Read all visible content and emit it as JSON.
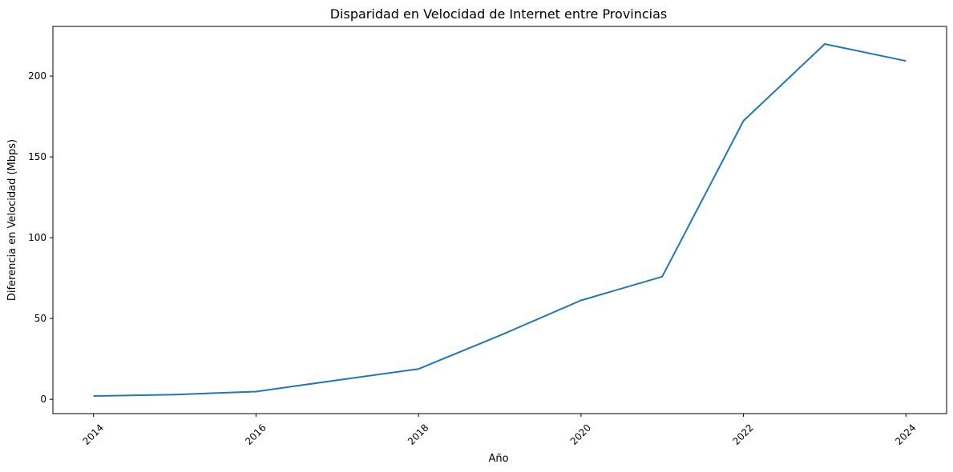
{
  "chart_data": {
    "type": "line",
    "title": "Disparidad en Velocidad de Internet entre Provincias",
    "xlabel": "Año",
    "ylabel": "Diferencia en Velocidad (Mbps)",
    "x": [
      2014,
      2015,
      2016,
      2017,
      2018,
      2019,
      2020,
      2021,
      2022,
      2023,
      2024
    ],
    "series": [
      {
        "values": [
          2.1,
          3.0,
          4.8,
          11.9,
          18.8,
          39.5,
          61.2,
          75.9,
          172.3,
          219.8,
          209.3
        ]
      }
    ],
    "xticks": [
      "2014",
      "2016",
      "2018",
      "2020",
      "2022",
      "2024"
    ],
    "yticks": [
      "0",
      "50",
      "100",
      "150",
      "200"
    ],
    "xlim": [
      2013.5,
      2024.5
    ],
    "ylim": [
      -8.8,
      230.7
    ],
    "grid": false,
    "line_color": "#1f77b4"
  }
}
